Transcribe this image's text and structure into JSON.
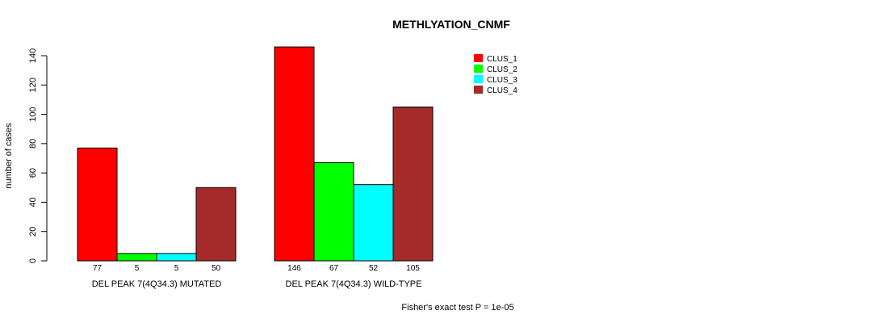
{
  "chart_data": {
    "type": "bar",
    "title": "METHLYATION_CNMF",
    "ylabel": "number of cases",
    "xlabel": "",
    "ylim": [
      0,
      140
    ],
    "yticks": [
      0,
      20,
      40,
      60,
      80,
      100,
      120,
      140
    ],
    "categories": [
      "DEL PEAK  7(4Q34.3) MUTATED",
      "DEL PEAK  7(4Q34.3) WILD-TYPE"
    ],
    "series": [
      {
        "name": "CLUS_1",
        "color": "#ff0000",
        "values": [
          77,
          146
        ]
      },
      {
        "name": "CLUS_2",
        "color": "#00ff00",
        "values": [
          5,
          67
        ]
      },
      {
        "name": "CLUS_3",
        "color": "#00ffff",
        "values": [
          5,
          52
        ]
      },
      {
        "name": "CLUS_4",
        "color": "#a52a2a",
        "values": [
          50,
          105
        ]
      }
    ],
    "legend_position": "top-right",
    "grid": false,
    "footnote": "Fisher's exact test P = 1e-05"
  }
}
